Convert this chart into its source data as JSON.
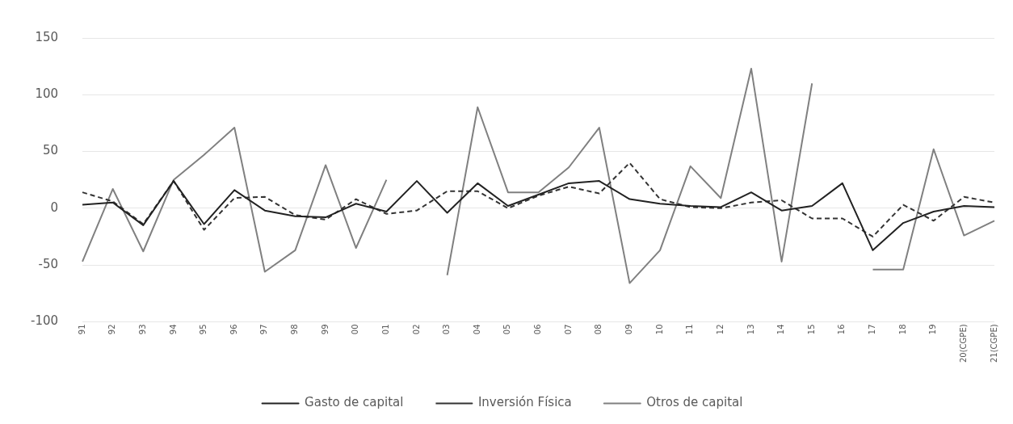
{
  "chart_data": {
    "type": "line",
    "categories": [
      "91",
      "92",
      "93",
      "94",
      "95",
      "96",
      "97",
      "98",
      "99",
      "00",
      "01",
      "02",
      "03",
      "04",
      "05",
      "06",
      "07",
      "08",
      "09",
      "10",
      "11",
      "12",
      "13",
      "14",
      "15",
      "16",
      "17",
      "18",
      "19",
      "20(CGPE)",
      "21(CGPE)"
    ],
    "series": [
      {
        "name": "Gasto de capital",
        "color": "#222222",
        "line_style": "solid",
        "values": [
          3,
          5,
          -15,
          24,
          -14,
          16,
          -2,
          -7,
          -8,
          4,
          -3,
          24,
          -4,
          22,
          2,
          12,
          22,
          24,
          8,
          4,
          2,
          1,
          14,
          -2,
          2,
          22,
          -37,
          -13,
          -3,
          2,
          1
        ]
      },
      {
        "name": "Inversión Física",
        "color": "#333333",
        "line_style": "dashed",
        "values": [
          14,
          6,
          -14,
          24,
          -19,
          9,
          10,
          -6,
          -10,
          8,
          -5,
          -2,
          15,
          15,
          0,
          11,
          19,
          13,
          40,
          8,
          1,
          0,
          5,
          7,
          -9,
          -9,
          -25,
          3,
          -11,
          10,
          5
        ]
      },
      {
        "name": "Otros de capital",
        "color": "#808080",
        "line_style": "solid",
        "values": [
          -47,
          17,
          -38,
          25,
          47,
          71,
          -56,
          -37,
          38,
          -35,
          25,
          null,
          -59,
          89,
          14,
          14,
          36,
          71,
          -66,
          -37,
          37,
          9,
          123,
          -47,
          110,
          null,
          -54,
          -54,
          52,
          -24,
          -11
        ]
      }
    ],
    "ylim": [
      -100,
      150
    ],
    "yticks": [
      -100,
      -50,
      0,
      50,
      100,
      150
    ],
    "grid": "y",
    "legend": "bottom",
    "marker": "none"
  }
}
